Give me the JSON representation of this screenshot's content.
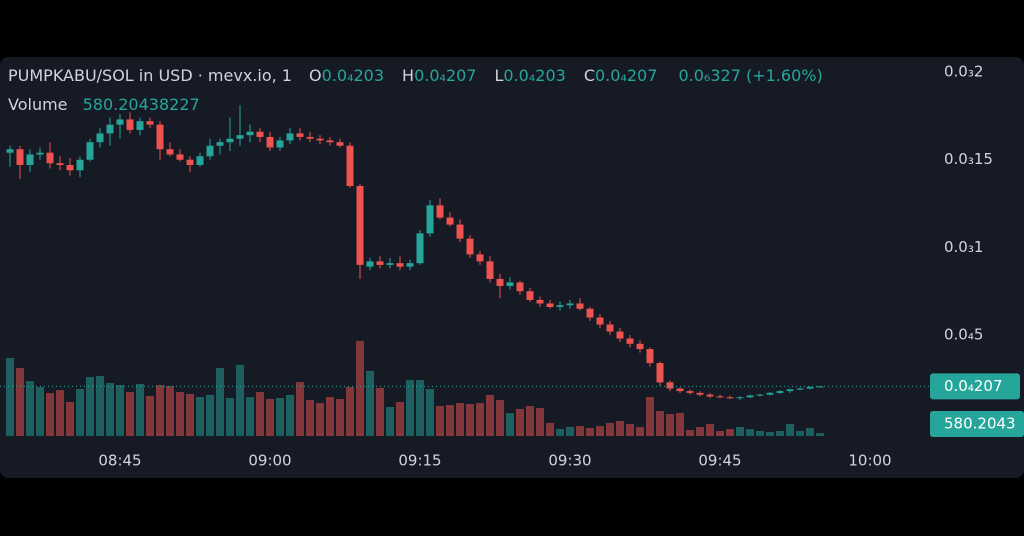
{
  "chart_data": {
    "type": "candlestick",
    "title": "PUMPKABU/SOL in USD · mevx.io, 1",
    "ohlc_legend": [
      {
        "key": "O",
        "label": "0.0₄203"
      },
      {
        "key": "H",
        "label": "0.0₄207"
      },
      {
        "key": "L",
        "label": "0.0₄203"
      },
      {
        "key": "C",
        "label": "0.0₄207"
      }
    ],
    "change_label": "0.0₆327 (+1.60%)",
    "volume_title": "Volume",
    "up_color": "#26a69a",
    "down_color": "#ef5350",
    "grid": false,
    "x": [
      "08:34",
      "08:35",
      "08:36",
      "08:37",
      "08:38",
      "08:39",
      "08:40",
      "08:41",
      "08:42",
      "08:43",
      "08:44",
      "08:45",
      "08:46",
      "08:47",
      "08:48",
      "08:49",
      "08:50",
      "08:51",
      "08:52",
      "08:53",
      "08:54",
      "08:55",
      "08:56",
      "08:57",
      "08:58",
      "08:59",
      "09:00",
      "09:01",
      "09:02",
      "09:03",
      "09:04",
      "09:05",
      "09:06",
      "09:07",
      "09:08",
      "09:09",
      "09:10",
      "09:11",
      "09:12",
      "09:13",
      "09:14",
      "09:15",
      "09:16",
      "09:17",
      "09:18",
      "09:19",
      "09:20",
      "09:21",
      "09:22",
      "09:23",
      "09:24",
      "09:25",
      "09:26",
      "09:27",
      "09:28",
      "09:29",
      "09:30",
      "09:31",
      "09:32",
      "09:33",
      "09:34",
      "09:35",
      "09:36",
      "09:37",
      "09:38",
      "09:39",
      "09:40",
      "09:41",
      "09:42",
      "09:43",
      "09:44",
      "09:45",
      "09:46",
      "09:47",
      "09:48",
      "09:49",
      "09:50",
      "09:51",
      "09:52",
      "09:53",
      "09:54",
      "09:55"
    ],
    "open": [
      0.000154,
      0.000156,
      0.000147,
      0.000153,
      0.000154,
      0.000148,
      0.000147,
      0.000144,
      0.00015,
      0.00016,
      0.000165,
      0.00017,
      0.000173,
      0.000167,
      0.000172,
      0.00017,
      0.000156,
      0.000153,
      0.00015,
      0.000147,
      0.000152,
      0.000158,
      0.00016,
      0.000162,
      0.000164,
      0.000166,
      0.000163,
      0.000157,
      0.000161,
      0.000165,
      0.000163,
      0.000162,
      0.000161,
      0.00016,
      0.000158,
      0.000135,
      8.9e-05,
      9.2e-05,
      9e-05,
      9.1e-05,
      8.9e-05,
      9.1e-05,
      0.000108,
      0.000124,
      0.000117,
      0.000113,
      0.000105,
      9.6e-05,
      9.2e-05,
      8.2e-05,
      7.8e-05,
      8e-05,
      7.5e-05,
      7e-05,
      6.8e-05,
      6.6e-05,
      6.7e-05,
      6.8e-05,
      6.5e-05,
      6e-05,
      5.6e-05,
      5.2e-05,
      4.8e-05,
      4.5e-05,
      4.2e-05,
      3.4e-05,
      2.3e-05,
      1.95e-05,
      1.8e-05,
      1.7e-05,
      1.6e-05,
      1.5e-05,
      1.45e-05,
      1.4e-05,
      1.45e-05,
      1.55e-05,
      1.6e-05,
      1.7e-05,
      1.8e-05,
      1.9e-05,
      1.95e-05,
      2.03e-05
    ],
    "high": [
      0.000158,
      0.000158,
      0.000156,
      0.000157,
      0.00016,
      0.000152,
      0.000151,
      0.000152,
      0.000162,
      0.000168,
      0.000174,
      0.000176,
      0.000177,
      0.000174,
      0.000174,
      0.000172,
      0.00016,
      0.000156,
      0.000152,
      0.000154,
      0.000162,
      0.000162,
      0.000174,
      0.000181,
      0.00017,
      0.000168,
      0.000166,
      0.000163,
      0.000168,
      0.000168,
      0.000166,
      0.000164,
      0.000163,
      0.000162,
      0.00016,
      0.000136,
      9.4e-05,
      9.5e-05,
      9.4e-05,
      9.5e-05,
      9.3e-05,
      0.00011,
      0.000127,
      0.000128,
      0.00012,
      0.000116,
      0.000107,
      9.8e-05,
      9.5e-05,
      8.5e-05,
      8.3e-05,
      8.1e-05,
      7.7e-05,
      7.2e-05,
      7e-05,
      6.9e-05,
      7e-05,
      7.1e-05,
      6.6e-05,
      6.2e-05,
      5.8e-05,
      5.4e-05,
      5e-05,
      4.7e-05,
      4.3e-05,
      3.5e-05,
      2.4e-05,
      2e-05,
      1.9e-05,
      1.8e-05,
      1.7e-05,
      1.6e-05,
      1.55e-05,
      1.5e-05,
      1.6e-05,
      1.65e-05,
      1.75e-05,
      1.85e-05,
      1.95e-05,
      2e-05,
      2.08e-05,
      2.07e-05
    ],
    "low": [
      0.000146,
      0.000139,
      0.000143,
      0.00015,
      0.000145,
      0.000144,
      0.000141,
      0.00014,
      0.000149,
      0.000157,
      0.000158,
      0.000162,
      0.000165,
      0.000164,
      0.000168,
      0.00015,
      0.000152,
      0.000149,
      0.000143,
      0.000146,
      0.00015,
      0.000153,
      0.000155,
      0.000158,
      0.00016,
      0.00016,
      0.000155,
      0.000155,
      0.000159,
      0.000161,
      0.00016,
      0.000159,
      0.000158,
      0.000157,
      0.000134,
      8.2e-05,
      8.7e-05,
      8.8e-05,
      8.8e-05,
      8.7e-05,
      8.7e-05,
      9e-05,
      0.000106,
      0.000116,
      0.000112,
      0.000103,
      9.4e-05,
      9e-05,
      8e-05,
      7.1e-05,
      7.6e-05,
      7.3e-05,
      6.9e-05,
      6.6e-05,
      6.5e-05,
      6.4e-05,
      6.5e-05,
      6.4e-05,
      5.8e-05,
      5.4e-05,
      5e-05,
      4.6e-05,
      4.3e-05,
      4e-05,
      3.2e-05,
      2.1e-05,
      1.8e-05,
      1.7e-05,
      1.6e-05,
      1.5e-05,
      1.4e-05,
      1.4e-05,
      1.35e-05,
      1.3e-05,
      1.4e-05,
      1.5e-05,
      1.55e-05,
      1.65e-05,
      1.7e-05,
      1.85e-05,
      1.9e-05,
      2.03e-05
    ],
    "close": [
      0.000156,
      0.000147,
      0.000153,
      0.000154,
      0.000148,
      0.000147,
      0.000144,
      0.00015,
      0.00016,
      0.000165,
      0.00017,
      0.000173,
      0.000167,
      0.000172,
      0.00017,
      0.000156,
      0.000153,
      0.00015,
      0.000147,
      0.000152,
      0.000158,
      0.00016,
      0.000162,
      0.000164,
      0.000166,
      0.000163,
      0.000157,
      0.000161,
      0.000165,
      0.000163,
      0.000162,
      0.000161,
      0.00016,
      0.000158,
      0.000135,
      9e-05,
      9.2e-05,
      9e-05,
      9.1e-05,
      8.9e-05,
      9.1e-05,
      0.000108,
      0.000124,
      0.000117,
      0.000113,
      0.000105,
      9.6e-05,
      9.2e-05,
      8.2e-05,
      7.8e-05,
      8e-05,
      7.5e-05,
      7e-05,
      6.8e-05,
      6.6e-05,
      6.7e-05,
      6.8e-05,
      6.5e-05,
      6e-05,
      5.6e-05,
      5.2e-05,
      4.8e-05,
      4.5e-05,
      4.2e-05,
      3.4e-05,
      2.3e-05,
      1.95e-05,
      1.8e-05,
      1.7e-05,
      1.6e-05,
      1.5e-05,
      1.45e-05,
      1.4e-05,
      1.45e-05,
      1.55e-05,
      1.6e-05,
      1.7e-05,
      1.8e-05,
      1.9e-05,
      1.95e-05,
      2.03e-05,
      2.07e-05
    ],
    "volume": [
      15600,
      13600,
      11000,
      9800,
      8600,
      9200,
      6800,
      9400,
      11800,
      12000,
      10600,
      10200,
      8800,
      10400,
      8000,
      10200,
      10000,
      8800,
      8400,
      7800,
      8200,
      13600,
      7600,
      14200,
      7800,
      8800,
      7400,
      7600,
      8200,
      10800,
      7200,
      6600,
      7800,
      7400,
      9800,
      19000,
      13000,
      9600,
      5800,
      6800,
      11200,
      11200,
      9400,
      6000,
      6200,
      6600,
      6400,
      6600,
      8200,
      7200,
      4600,
      5400,
      6000,
      5600,
      2600,
      1400,
      1800,
      2000,
      1600,
      2000,
      2600,
      3000,
      2400,
      1800,
      7800,
      5000,
      4400,
      4600,
      1200,
      1800,
      2400,
      1000,
      1400,
      1800,
      1400,
      1000,
      800,
      1000,
      2400,
      1000,
      1600,
      580.20438227
    ],
    "volume_lim": [
      0,
      20000
    ],
    "xlim": [
      "08:33",
      "10:06"
    ],
    "xticks": [
      "08:45",
      "09:00",
      "09:15",
      "09:30",
      "09:45",
      "10:00"
    ],
    "ylim": [
      -1.33e-05,
      0.0002086
    ],
    "yticks": [
      {
        "value": 0.0002,
        "label": "0.0₃2"
      },
      {
        "value": 0.00015,
        "label": "0.0₃15"
      },
      {
        "value": 0.0001,
        "label": "0.0₃1"
      },
      {
        "value": 5e-05,
        "label": "0.0₄5"
      }
    ],
    "last_price": {
      "value": 2.07e-05,
      "label": "0.0₄207"
    },
    "last_volume_label": "580.2043"
  }
}
